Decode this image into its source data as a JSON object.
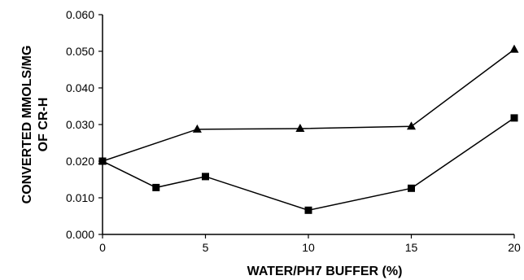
{
  "chart_data": {
    "type": "line",
    "title": "",
    "xlabel": "WATER/PH7 BUFFER (%)",
    "ylabel_lines": [
      "CONVERTED MMOLS/MG",
      "OF CR-H"
    ],
    "xlim": [
      0,
      20
    ],
    "ylim": [
      0,
      0.06
    ],
    "x_ticks": [
      0,
      5,
      10,
      15,
      20
    ],
    "x_tick_labels": [
      "0",
      "5",
      "10",
      "15",
      "20"
    ],
    "y_ticks": [
      0,
      0.01,
      0.02,
      0.03,
      0.04,
      0.05,
      0.06
    ],
    "y_tick_labels": [
      "0.000",
      "0.010",
      "0.020",
      "0.030",
      "0.040",
      "0.050",
      "0.060"
    ],
    "grid": false,
    "legend": false,
    "series": [
      {
        "marker": "triangle",
        "color": "#000000",
        "points": [
          [
            0,
            0.02
          ],
          [
            4.6,
            0.0287
          ],
          [
            9.6,
            0.0289
          ],
          [
            15,
            0.0295
          ],
          [
            20,
            0.0505
          ]
        ]
      },
      {
        "marker": "square",
        "color": "#000000",
        "points": [
          [
            0,
            0.02
          ],
          [
            2.6,
            0.0128
          ],
          [
            5,
            0.0158
          ],
          [
            10,
            0.0066
          ],
          [
            15,
            0.0126
          ],
          [
            20,
            0.0318
          ]
        ]
      }
    ]
  }
}
